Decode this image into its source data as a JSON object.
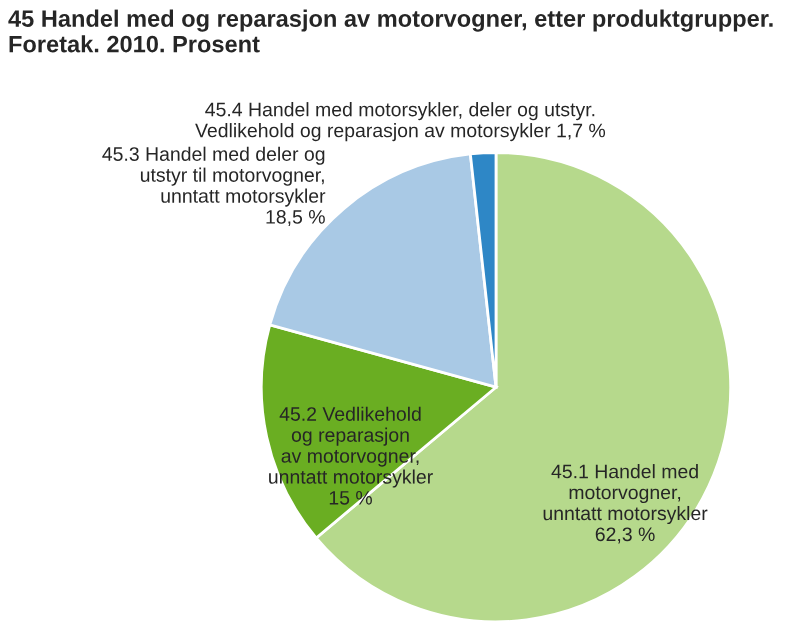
{
  "chart_data": {
    "type": "pie",
    "title": "45 Handel med og reparasjon av motorvogner, etter produktgrupper.\nForetak. 2010. Prosent",
    "categories": [
      "45.1 Handel med\nmotorvogner,\nunntatt motorsykler",
      "45.2 Vedlikehold\nog reparasjon\nav motorvogner,\nunntatt motorsykler",
      "45.3 Handel med deler og\nutstyr til motorvogner,\nunntatt motorsykler",
      "45.4 Handel med motorsykler, deler og utstyr.\nVedlikehold og reparasjon av motorsykler"
    ],
    "values": [
      62.3,
      15,
      18.5,
      1.7
    ],
    "value_labels": [
      "62,3 %",
      "15 %",
      "18,5 %",
      "1,7 %"
    ],
    "colors": [
      "#b6d98c",
      "#6aae22",
      "#a9c9e5",
      "#2e87c6"
    ],
    "legend": false
  }
}
